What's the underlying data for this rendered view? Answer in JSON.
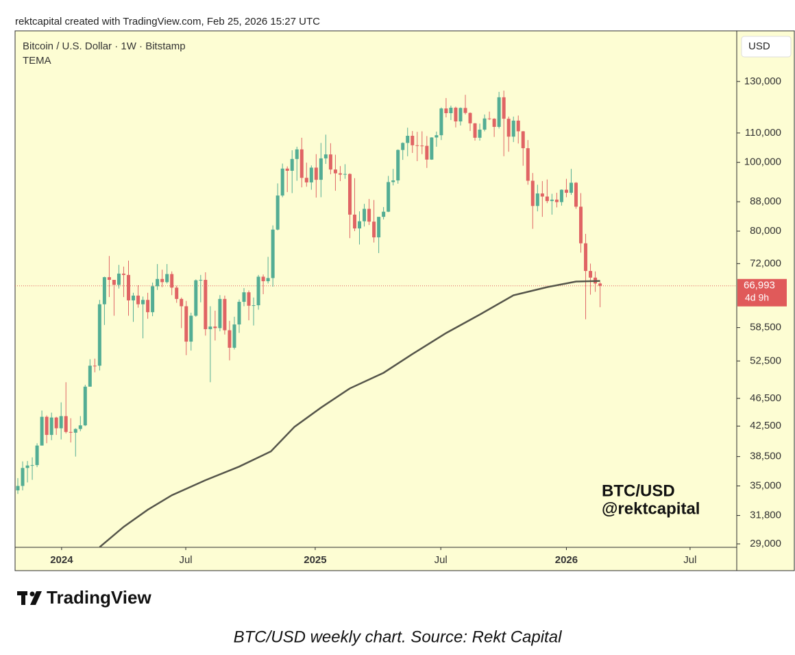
{
  "header": "rektcapital created with TradingView.com, Feb 25, 2026 15:27 UTC",
  "caption": "BTC/USD weekly chart. Source: Rekt Capital",
  "brand": "TradingView",
  "chart_data": {
    "type": "candlestick",
    "title": "Bitcoin / U.S. Dollar · 1W · Bitstamp",
    "currency": "USD",
    "watermark": [
      "BTC/USD",
      "@rektcapital"
    ],
    "log": true,
    "up_color": "#53ad94",
    "down_color": "#e06464",
    "xlim": [
      -0.57,
      149.4
    ],
    "xticks": [
      {
        "value": 9.1,
        "label": "2024"
      },
      {
        "value": 34.9,
        "label": "Jul"
      },
      {
        "value": 61.8,
        "label": "2025"
      },
      {
        "value": 87.9,
        "label": "Jul"
      },
      {
        "value": 114,
        "label": "2026"
      },
      {
        "value": 139.7,
        "label": "Jul"
      }
    ],
    "ylim": [
      28680,
      153200
    ],
    "yticks": [
      {
        "value": 29000,
        "label": "29,000"
      },
      {
        "value": 31800,
        "label": "31,800"
      },
      {
        "value": 35000,
        "label": "35,000"
      },
      {
        "value": 38500,
        "label": "38,500"
      },
      {
        "value": 42500,
        "label": "42,500"
      },
      {
        "value": 46500,
        "label": "46,500"
      },
      {
        "value": 52500,
        "label": "52,500"
      },
      {
        "value": 58500,
        "label": "58,500"
      },
      {
        "value": 72000,
        "label": "72,000"
      },
      {
        "value": 80000,
        "label": "80,000"
      },
      {
        "value": 88000,
        "label": "88,000"
      },
      {
        "value": 100000,
        "label": "100,000"
      },
      {
        "value": 110000,
        "label": "110,000"
      },
      {
        "value": 130000,
        "label": "130,000"
      }
    ],
    "last_price": {
      "value": 66993,
      "label": "66,993",
      "color": "#e05a5a"
    },
    "countdown": "4d 9h",
    "candles": [
      [
        34500,
        35900,
        34100,
        35000
      ],
      [
        35000,
        37900,
        34500,
        37100
      ],
      [
        37100,
        37950,
        35400,
        37400
      ],
      [
        37400,
        38400,
        35700,
        37450
      ],
      [
        37450,
        40200,
        37200,
        39900
      ],
      [
        39900,
        44700,
        39900,
        43800
      ],
      [
        43800,
        44000,
        40200,
        41300
      ],
      [
        41300,
        44400,
        40600,
        43700
      ],
      [
        43700,
        43800,
        41300,
        42200
      ],
      [
        42200,
        45900,
        40700,
        43900
      ],
      [
        43900,
        49000,
        41500,
        41700
      ],
      [
        41700,
        43600,
        40300,
        41600
      ],
      [
        41600,
        42200,
        38500,
        42100
      ],
      [
        42100,
        43900,
        41800,
        42600
      ],
      [
        42600,
        48600,
        42500,
        48300
      ],
      [
        48300,
        52800,
        48300,
        51700
      ],
      [
        51700,
        52900,
        50600,
        51600
      ],
      [
        51700,
        64000,
        50900,
        63100
      ],
      [
        63100,
        69000,
        59000,
        68900
      ],
      [
        68900,
        73800,
        64600,
        68300
      ],
      [
        68300,
        68300,
        60800,
        67200
      ],
      [
        67200,
        71700,
        66400,
        69700
      ],
      [
        69700,
        71300,
        64600,
        69400
      ],
      [
        69400,
        72700,
        60800,
        63900
      ],
      [
        63900,
        65500,
        59600,
        64900
      ],
      [
        64900,
        67100,
        62400,
        63100
      ],
      [
        63100,
        64700,
        56500,
        64000
      ],
      [
        64000,
        65500,
        60200,
        61500
      ],
      [
        61500,
        67700,
        60700,
        66900
      ],
      [
        66900,
        71900,
        66100,
        68500
      ],
      [
        68500,
        70600,
        66700,
        67800
      ],
      [
        67800,
        71900,
        67500,
        69600
      ],
      [
        69600,
        70200,
        65000,
        66600
      ],
      [
        66600,
        67000,
        63400,
        64200
      ],
      [
        64200,
        64500,
        58400,
        62700
      ],
      [
        62700,
        63800,
        53500,
        55900
      ],
      [
        55900,
        61400,
        54300,
        60800
      ],
      [
        60800,
        68400,
        60600,
        68200
      ],
      [
        68200,
        69400,
        63500,
        68300
      ],
      [
        68300,
        70000,
        57000,
        58200
      ],
      [
        58200,
        62700,
        49000,
        58700
      ],
      [
        58700,
        61800,
        56100,
        58400
      ],
      [
        58400,
        65000,
        57800,
        64200
      ],
      [
        64200,
        64900,
        57200,
        58000
      ],
      [
        58000,
        59800,
        52600,
        54800
      ],
      [
        54800,
        60600,
        54500,
        59100
      ],
      [
        59100,
        64100,
        57500,
        63600
      ],
      [
        63600,
        66500,
        62700,
        65600
      ],
      [
        65600,
        66000,
        59900,
        62800
      ],
      [
        62800,
        64500,
        58900,
        62900
      ],
      [
        62900,
        69400,
        62000,
        69000
      ],
      [
        69000,
        69500,
        65200,
        68000
      ],
      [
        68000,
        73600,
        67500,
        68700
      ],
      [
        68700,
        81500,
        66800,
        80400
      ],
      [
        80400,
        93400,
        80200,
        89800
      ],
      [
        89800,
        99600,
        89300,
        98000
      ],
      [
        98000,
        98700,
        90800,
        97300
      ],
      [
        97300,
        104000,
        90500,
        101100
      ],
      [
        101100,
        105200,
        94200,
        104300
      ],
      [
        104300,
        108300,
        92200,
        95100
      ],
      [
        95100,
        99900,
        92400,
        93700
      ],
      [
        93700,
        99000,
        91500,
        98300
      ],
      [
        98300,
        102700,
        89200,
        94500
      ],
      [
        94500,
        106500,
        89300,
        101300
      ],
      [
        101300,
        109400,
        99500,
        102600
      ],
      [
        102600,
        106400,
        96200,
        97700
      ],
      [
        97700,
        102500,
        91200,
        96500
      ],
      [
        96500,
        98800,
        94100,
        96100
      ],
      [
        96100,
        99400,
        94800,
        96300
      ],
      [
        96300,
        96500,
        78200,
        84400
      ],
      [
        84400,
        95000,
        80000,
        80700
      ],
      [
        80700,
        85300,
        76600,
        82600
      ],
      [
        82600,
        87400,
        81200,
        86000
      ],
      [
        86000,
        88800,
        81600,
        82500
      ],
      [
        82500,
        88500,
        77100,
        78400
      ],
      [
        78400,
        83500,
        74500,
        83800
      ],
      [
        83800,
        86500,
        83100,
        85200
      ],
      [
        85200,
        95700,
        85100,
        93800
      ],
      [
        93800,
        97900,
        92800,
        94300
      ],
      [
        94300,
        104300,
        93300,
        104100
      ],
      [
        104100,
        106700,
        100800,
        106500
      ],
      [
        106500,
        111900,
        102000,
        109000
      ],
      [
        109000,
        110700,
        103100,
        105700
      ],
      [
        105700,
        110400,
        100400,
        105600
      ],
      [
        105600,
        110600,
        102700,
        105500
      ],
      [
        105500,
        108900,
        98200,
        100900
      ],
      [
        100900,
        108500,
        100800,
        108400
      ],
      [
        108400,
        110500,
        105200,
        109200
      ],
      [
        109200,
        119500,
        107500,
        119100
      ],
      [
        119100,
        123200,
        115700,
        117300
      ],
      [
        117300,
        120200,
        114700,
        119400
      ],
      [
        119400,
        119800,
        112000,
        114200
      ],
      [
        114200,
        119500,
        112700,
        119300
      ],
      [
        119300,
        124500,
        116800,
        117400
      ],
      [
        117400,
        117600,
        110700,
        113500
      ],
      [
        113500,
        113600,
        107300,
        108300
      ],
      [
        108300,
        113400,
        107300,
        111200
      ],
      [
        111200,
        116800,
        110600,
        115300
      ],
      [
        115300,
        117900,
        114700,
        115200
      ],
      [
        115200,
        115400,
        108600,
        112200
      ],
      [
        112200,
        125700,
        111600,
        123500
      ],
      [
        123500,
        126200,
        102000,
        115200
      ],
      [
        115200,
        116000,
        103500,
        108700
      ],
      [
        108700,
        116000,
        106800,
        114500
      ],
      [
        114500,
        116400,
        106300,
        110600
      ],
      [
        110600,
        110700,
        98900,
        104700
      ],
      [
        104700,
        107500,
        93000,
        94200
      ],
      [
        94200,
        96600,
        80600,
        86800
      ],
      [
        86800,
        93000,
        85300,
        90400
      ],
      [
        90400,
        94100,
        83800,
        89500
      ],
      [
        89500,
        94600,
        87600,
        88200
      ],
      [
        88200,
        90300,
        84400,
        88600
      ],
      [
        88600,
        90600,
        86400,
        87900
      ],
      [
        87900,
        91600,
        86900,
        91500
      ],
      [
        91500,
        94800,
        89300,
        90600
      ],
      [
        90600,
        97900,
        90000,
        93600
      ],
      [
        93600,
        93800,
        86000,
        86600
      ],
      [
        86600,
        90500,
        74600,
        76900
      ],
      [
        76900,
        79300,
        60100,
        70300
      ],
      [
        70300,
        72000,
        65100,
        68800
      ],
      [
        68800,
        70200,
        65700,
        67500
      ],
      [
        67500,
        67800,
        62500,
        66993
      ]
    ],
    "indicator": {
      "name": "TEMA",
      "color": "#55554a",
      "x": [
        17,
        22,
        27,
        32,
        39,
        46,
        52.6,
        57.5,
        63,
        69,
        76,
        82,
        89,
        96,
        103,
        110,
        116,
        121
      ],
      "values": [
        28700,
        30650,
        32400,
        33960,
        35660,
        37270,
        39150,
        42400,
        45130,
        48030,
        50510,
        53690,
        57480,
        61040,
        64970,
        66710,
        67930,
        68070
      ]
    }
  }
}
